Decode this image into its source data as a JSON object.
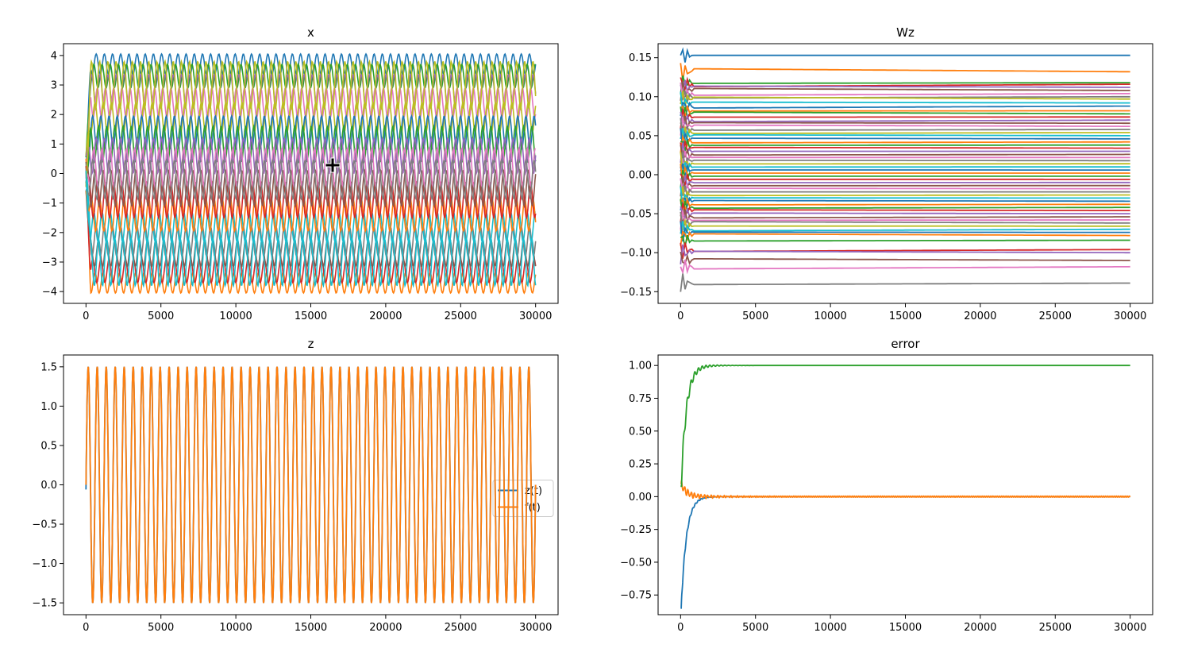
{
  "window": {},
  "chart_data": [
    {
      "type": "line",
      "title": "x",
      "xlabel": "",
      "ylabel": "",
      "xlim": [
        -1500,
        31500
      ],
      "ylim": [
        -4.4,
        4.4
      ],
      "x_ticks": [
        0,
        5000,
        10000,
        15000,
        20000,
        25000,
        30000
      ],
      "y_ticks": [
        -4,
        -3,
        -2,
        -1,
        0,
        1,
        2,
        3,
        4
      ],
      "grid": false,
      "legend": null,
      "description_values": {
        "n_series": 20,
        "x_range": [
          0,
          30000
        ],
        "oscillation_periods_shown": 55,
        "series_centers": [
          3.7,
          -3.7,
          3.3,
          -3.3,
          2.9,
          -2.7,
          2.4,
          -2.3,
          1.9,
          -1.8,
          1.4,
          -1.4,
          1.0,
          -0.9,
          0.6,
          -0.5,
          0.2,
          -0.2,
          3.0,
          -3.0
        ],
        "series_amplitudes": [
          0.35,
          0.35,
          0.4,
          0.4,
          0.45,
          0.45,
          0.5,
          0.5,
          0.5,
          0.5,
          0.55,
          0.55,
          0.6,
          0.6,
          0.6,
          0.6,
          0.65,
          0.65,
          0.8,
          0.8
        ]
      }
    },
    {
      "type": "line",
      "title": "Wz",
      "xlabel": "",
      "ylabel": "",
      "xlim": [
        -1500,
        31500
      ],
      "ylim": [
        -0.165,
        0.168
      ],
      "x_ticks": [
        0,
        5000,
        10000,
        15000,
        20000,
        25000,
        30000
      ],
      "y_ticks": [
        -0.15,
        -0.1,
        -0.05,
        0.0,
        0.05,
        0.1,
        0.15
      ],
      "grid": false,
      "legend": null,
      "series_final_values": [
        0.153,
        0.132,
        0.118,
        0.116,
        0.112,
        0.108,
        0.104,
        0.1,
        0.097,
        0.092,
        0.088,
        0.082,
        0.078,
        0.074,
        0.07,
        0.066,
        0.062,
        0.058,
        0.054,
        0.05,
        0.046,
        0.042,
        0.038,
        0.034,
        0.03,
        0.026,
        0.022,
        0.018,
        0.014,
        0.01,
        0.006,
        0.002,
        -0.002,
        -0.006,
        -0.01,
        -0.014,
        -0.018,
        -0.022,
        -0.026,
        -0.03,
        -0.034,
        -0.038,
        -0.042,
        -0.046,
        -0.05,
        -0.054,
        -0.058,
        -0.062,
        -0.066,
        -0.07,
        -0.074,
        -0.078,
        -0.084,
        -0.096,
        -0.1,
        -0.11,
        -0.118,
        -0.139
      ]
    },
    {
      "type": "line",
      "title": "z",
      "xlabel": "",
      "ylabel": "",
      "xlim": [
        -1500,
        31500
      ],
      "ylim": [
        -1.65,
        1.65
      ],
      "x_ticks": [
        0,
        5000,
        10000,
        15000,
        20000,
        25000,
        30000
      ],
      "y_ticks": [
        -1.5,
        -1.0,
        -0.5,
        0.0,
        0.5,
        1.0,
        1.5
      ],
      "grid": false,
      "legend": {
        "position": "center-right"
      },
      "series": [
        {
          "name": "z(t)",
          "color": "#1f77b4",
          "amplitude": 1.5,
          "period": 600,
          "x_range": [
            0,
            30000
          ]
        },
        {
          "name": "f(t)",
          "color": "#ff7f0e",
          "amplitude": 1.5,
          "period": 600,
          "x_range": [
            0,
            30000
          ]
        }
      ]
    },
    {
      "type": "line",
      "title": "error",
      "xlabel": "",
      "ylabel": "",
      "xlim": [
        -1500,
        31500
      ],
      "ylim": [
        -0.9,
        1.08
      ],
      "x_ticks": [
        0,
        5000,
        10000,
        15000,
        20000,
        25000,
        30000
      ],
      "y_ticks": [
        -0.75,
        -0.5,
        -0.25,
        0.0,
        0.25,
        0.5,
        0.75,
        1.0
      ],
      "grid": false,
      "legend": null,
      "series": [
        {
          "color": "#1f77b4",
          "start": -0.85,
          "final": 0.0
        },
        {
          "color": "#ff7f0e",
          "start": 0.1,
          "final": 0.0
        },
        {
          "color": "#2ca02c",
          "start": 0.08,
          "final": 1.0
        }
      ]
    }
  ],
  "palette": [
    "#1f77b4",
    "#ff7f0e",
    "#2ca02c",
    "#d62728",
    "#9467bd",
    "#8c564b",
    "#e377c2",
    "#7f7f7f",
    "#bcbd22",
    "#17becf"
  ],
  "cursor": {
    "icon": "crosshair-cursor-icon"
  }
}
